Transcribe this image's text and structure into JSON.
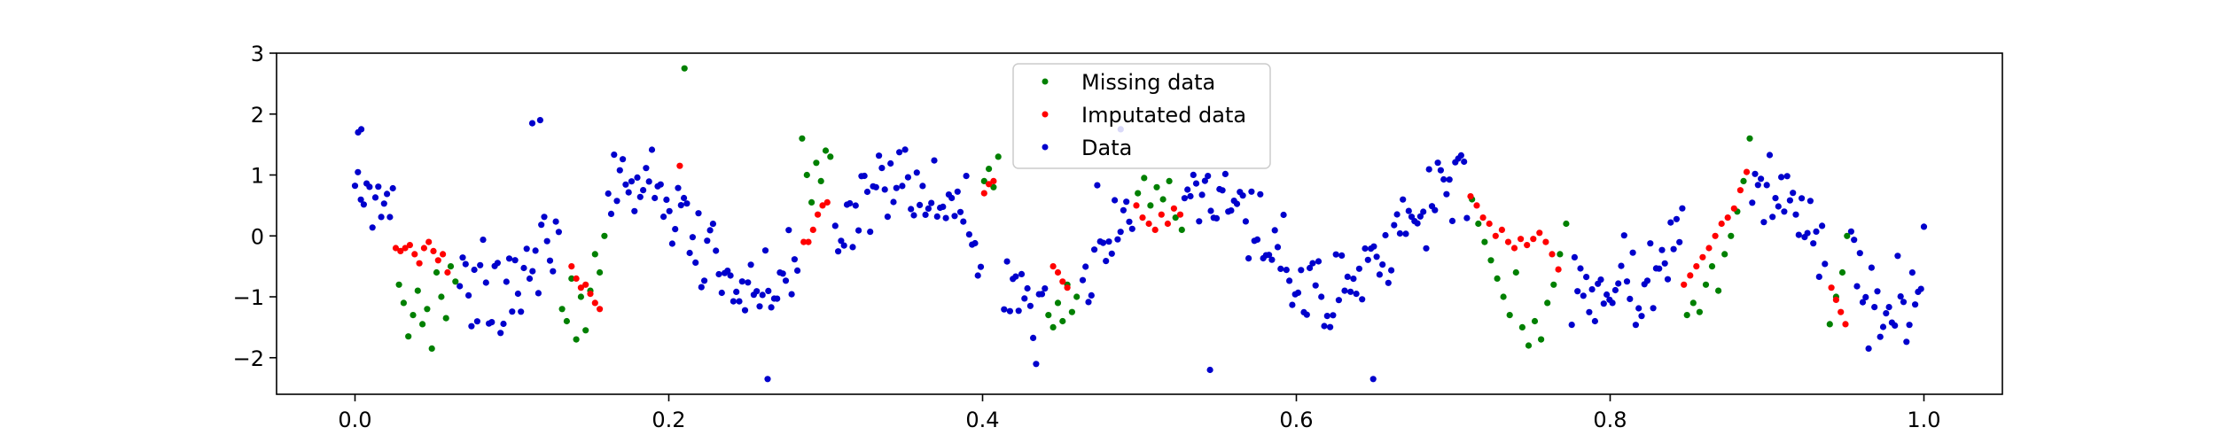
{
  "chart_data": {
    "type": "scatter",
    "title": "",
    "xlabel": "",
    "ylabel": "",
    "xlim": [
      -0.05,
      1.05
    ],
    "ylim": [
      -2.6,
      3.0
    ],
    "grid": false,
    "legend_placement": "top-center",
    "x_ticks": [
      "0.0",
      "0.2",
      "0.4",
      "0.6",
      "0.8",
      "1.0"
    ],
    "x_tick_values": [
      0.0,
      0.2,
      0.4,
      0.6,
      0.8,
      1.0
    ],
    "y_ticks": [
      "−2",
      "−1",
      "0",
      "1",
      "2",
      "3"
    ],
    "y_tick_values": [
      -2,
      -1,
      0,
      1,
      2,
      3
    ],
    "series": [
      {
        "name": "Missing data",
        "color": "#008000",
        "ranges": [
          [
            0.025,
            0.065
          ],
          [
            0.13,
            0.16
          ],
          [
            0.283,
            0.305
          ],
          [
            0.4,
            0.412
          ],
          [
            0.44,
            0.462
          ],
          [
            0.497,
            0.527
          ],
          [
            0.71,
            0.775
          ],
          [
            0.847,
            0.89
          ],
          [
            0.938,
            0.952
          ]
        ],
        "points": [
          [
            0.028,
            -0.8
          ],
          [
            0.031,
            -1.1
          ],
          [
            0.034,
            -1.65
          ],
          [
            0.037,
            -1.3
          ],
          [
            0.04,
            -0.9
          ],
          [
            0.043,
            -1.45
          ],
          [
            0.046,
            -1.2
          ],
          [
            0.049,
            -1.85
          ],
          [
            0.052,
            -0.6
          ],
          [
            0.055,
            -1.0
          ],
          [
            0.058,
            -1.35
          ],
          [
            0.061,
            -0.5
          ],
          [
            0.064,
            -0.75
          ],
          [
            0.132,
            -1.2
          ],
          [
            0.135,
            -1.4
          ],
          [
            0.138,
            -0.7
          ],
          [
            0.141,
            -1.7
          ],
          [
            0.144,
            -1.0
          ],
          [
            0.147,
            -1.55
          ],
          [
            0.15,
            -0.9
          ],
          [
            0.153,
            -0.3
          ],
          [
            0.156,
            -0.6
          ],
          [
            0.159,
            0.0
          ],
          [
            0.21,
            2.75
          ],
          [
            0.285,
            1.6
          ],
          [
            0.288,
            1.0
          ],
          [
            0.291,
            0.55
          ],
          [
            0.294,
            1.2
          ],
          [
            0.297,
            0.9
          ],
          [
            0.3,
            1.4
          ],
          [
            0.303,
            1.3
          ],
          [
            0.401,
            0.9
          ],
          [
            0.404,
            1.1
          ],
          [
            0.407,
            0.8
          ],
          [
            0.41,
            1.3
          ],
          [
            0.442,
            -1.3
          ],
          [
            0.445,
            -1.5
          ],
          [
            0.448,
            -1.1
          ],
          [
            0.451,
            -1.4
          ],
          [
            0.454,
            -0.8
          ],
          [
            0.457,
            -1.25
          ],
          [
            0.46,
            -1.0
          ],
          [
            0.499,
            0.7
          ],
          [
            0.503,
            0.95
          ],
          [
            0.507,
            0.5
          ],
          [
            0.511,
            0.8
          ],
          [
            0.515,
            0.6
          ],
          [
            0.519,
            0.9
          ],
          [
            0.523,
            0.3
          ],
          [
            0.527,
            0.1
          ],
          [
            0.712,
            0.6
          ],
          [
            0.716,
            0.2
          ],
          [
            0.72,
            -0.1
          ],
          [
            0.724,
            -0.4
          ],
          [
            0.728,
            -0.7
          ],
          [
            0.732,
            -1.0
          ],
          [
            0.736,
            -1.3
          ],
          [
            0.74,
            -0.6
          ],
          [
            0.744,
            -1.5
          ],
          [
            0.748,
            -1.8
          ],
          [
            0.752,
            -1.4
          ],
          [
            0.756,
            -1.7
          ],
          [
            0.76,
            -1.1
          ],
          [
            0.764,
            -0.8
          ],
          [
            0.768,
            -0.3
          ],
          [
            0.772,
            0.2
          ],
          [
            0.849,
            -1.3
          ],
          [
            0.853,
            -1.1
          ],
          [
            0.857,
            -1.25
          ],
          [
            0.861,
            -0.8
          ],
          [
            0.865,
            -0.5
          ],
          [
            0.869,
            -0.9
          ],
          [
            0.873,
            -0.3
          ],
          [
            0.877,
            0.0
          ],
          [
            0.881,
            0.4
          ],
          [
            0.885,
            0.9
          ],
          [
            0.889,
            1.6
          ],
          [
            0.94,
            -1.45
          ],
          [
            0.944,
            -1.0
          ],
          [
            0.948,
            -0.6
          ],
          [
            0.951,
            0.0
          ]
        ]
      },
      {
        "name": "Imputated data",
        "color": "#ff0000",
        "ranges": [
          [
            0.025,
            0.06
          ],
          [
            0.137,
            0.157
          ],
          [
            0.285,
            0.3
          ],
          [
            0.4,
            0.41
          ],
          [
            0.444,
            0.456
          ],
          [
            0.497,
            0.527
          ],
          [
            0.71,
            0.77
          ],
          [
            0.846,
            0.886
          ],
          [
            0.94,
            0.95
          ]
        ],
        "points": [
          [
            0.026,
            -0.2
          ],
          [
            0.029,
            -0.25
          ],
          [
            0.032,
            -0.2
          ],
          [
            0.035,
            -0.15
          ],
          [
            0.038,
            -0.3
          ],
          [
            0.041,
            -0.45
          ],
          [
            0.044,
            -0.2
          ],
          [
            0.047,
            -0.1
          ],
          [
            0.05,
            -0.25
          ],
          [
            0.053,
            -0.4
          ],
          [
            0.056,
            -0.3
          ],
          [
            0.059,
            -0.6
          ],
          [
            0.138,
            -0.5
          ],
          [
            0.141,
            -0.7
          ],
          [
            0.144,
            -0.85
          ],
          [
            0.147,
            -0.8
          ],
          [
            0.15,
            -0.95
          ],
          [
            0.153,
            -1.1
          ],
          [
            0.156,
            -1.2
          ],
          [
            0.207,
            1.15
          ],
          [
            0.286,
            -0.1
          ],
          [
            0.289,
            -0.1
          ],
          [
            0.292,
            0.1
          ],
          [
            0.295,
            0.35
          ],
          [
            0.298,
            0.5
          ],
          [
            0.301,
            0.55
          ],
          [
            0.401,
            0.7
          ],
          [
            0.404,
            0.85
          ],
          [
            0.407,
            0.9
          ],
          [
            0.445,
            -0.5
          ],
          [
            0.448,
            -0.6
          ],
          [
            0.451,
            -0.75
          ],
          [
            0.454,
            -0.85
          ],
          [
            0.498,
            0.5
          ],
          [
            0.502,
            0.3
          ],
          [
            0.506,
            0.2
          ],
          [
            0.51,
            0.1
          ],
          [
            0.514,
            0.35
          ],
          [
            0.518,
            0.2
          ],
          [
            0.522,
            0.45
          ],
          [
            0.526,
            0.35
          ],
          [
            0.711,
            0.65
          ],
          [
            0.715,
            0.5
          ],
          [
            0.719,
            0.3
          ],
          [
            0.723,
            0.2
          ],
          [
            0.727,
            0.0
          ],
          [
            0.731,
            0.1
          ],
          [
            0.735,
            -0.1
          ],
          [
            0.739,
            -0.2
          ],
          [
            0.743,
            -0.05
          ],
          [
            0.747,
            -0.15
          ],
          [
            0.751,
            -0.05
          ],
          [
            0.755,
            0.05
          ],
          [
            0.759,
            -0.1
          ],
          [
            0.763,
            -0.3
          ],
          [
            0.767,
            -0.55
          ],
          [
            0.847,
            -0.8
          ],
          [
            0.851,
            -0.65
          ],
          [
            0.855,
            -0.5
          ],
          [
            0.859,
            -0.35
          ],
          [
            0.863,
            -0.2
          ],
          [
            0.867,
            0.0
          ],
          [
            0.871,
            0.2
          ],
          [
            0.875,
            0.3
          ],
          [
            0.879,
            0.45
          ],
          [
            0.883,
            0.75
          ],
          [
            0.887,
            1.05
          ],
          [
            0.941,
            -0.85
          ],
          [
            0.944,
            -1.05
          ],
          [
            0.947,
            -1.25
          ],
          [
            0.95,
            -1.45
          ]
        ]
      },
      {
        "name": "Data",
        "color": "#0000cc",
        "period": 0.18,
        "phase": 0.35,
        "amplitude": 0.95,
        "noise": 0.38,
        "count": 540,
        "excluded_ranges": [
          [
            0.025,
            0.065
          ],
          [
            0.13,
            0.16
          ],
          [
            0.283,
            0.305
          ],
          [
            0.4,
            0.412
          ],
          [
            0.44,
            0.462
          ],
          [
            0.497,
            0.527
          ],
          [
            0.71,
            0.775
          ],
          [
            0.847,
            0.89
          ],
          [
            0.938,
            0.952
          ]
        ],
        "extra_points": [
          [
            0.004,
            1.75
          ],
          [
            0.002,
            1.7
          ],
          [
            0.118,
            1.9
          ],
          [
            0.113,
            1.85
          ],
          [
            0.263,
            -2.35
          ],
          [
            0.545,
            -2.2
          ],
          [
            0.649,
            -2.35
          ],
          [
            0.488,
            1.75
          ]
        ]
      }
    ]
  }
}
